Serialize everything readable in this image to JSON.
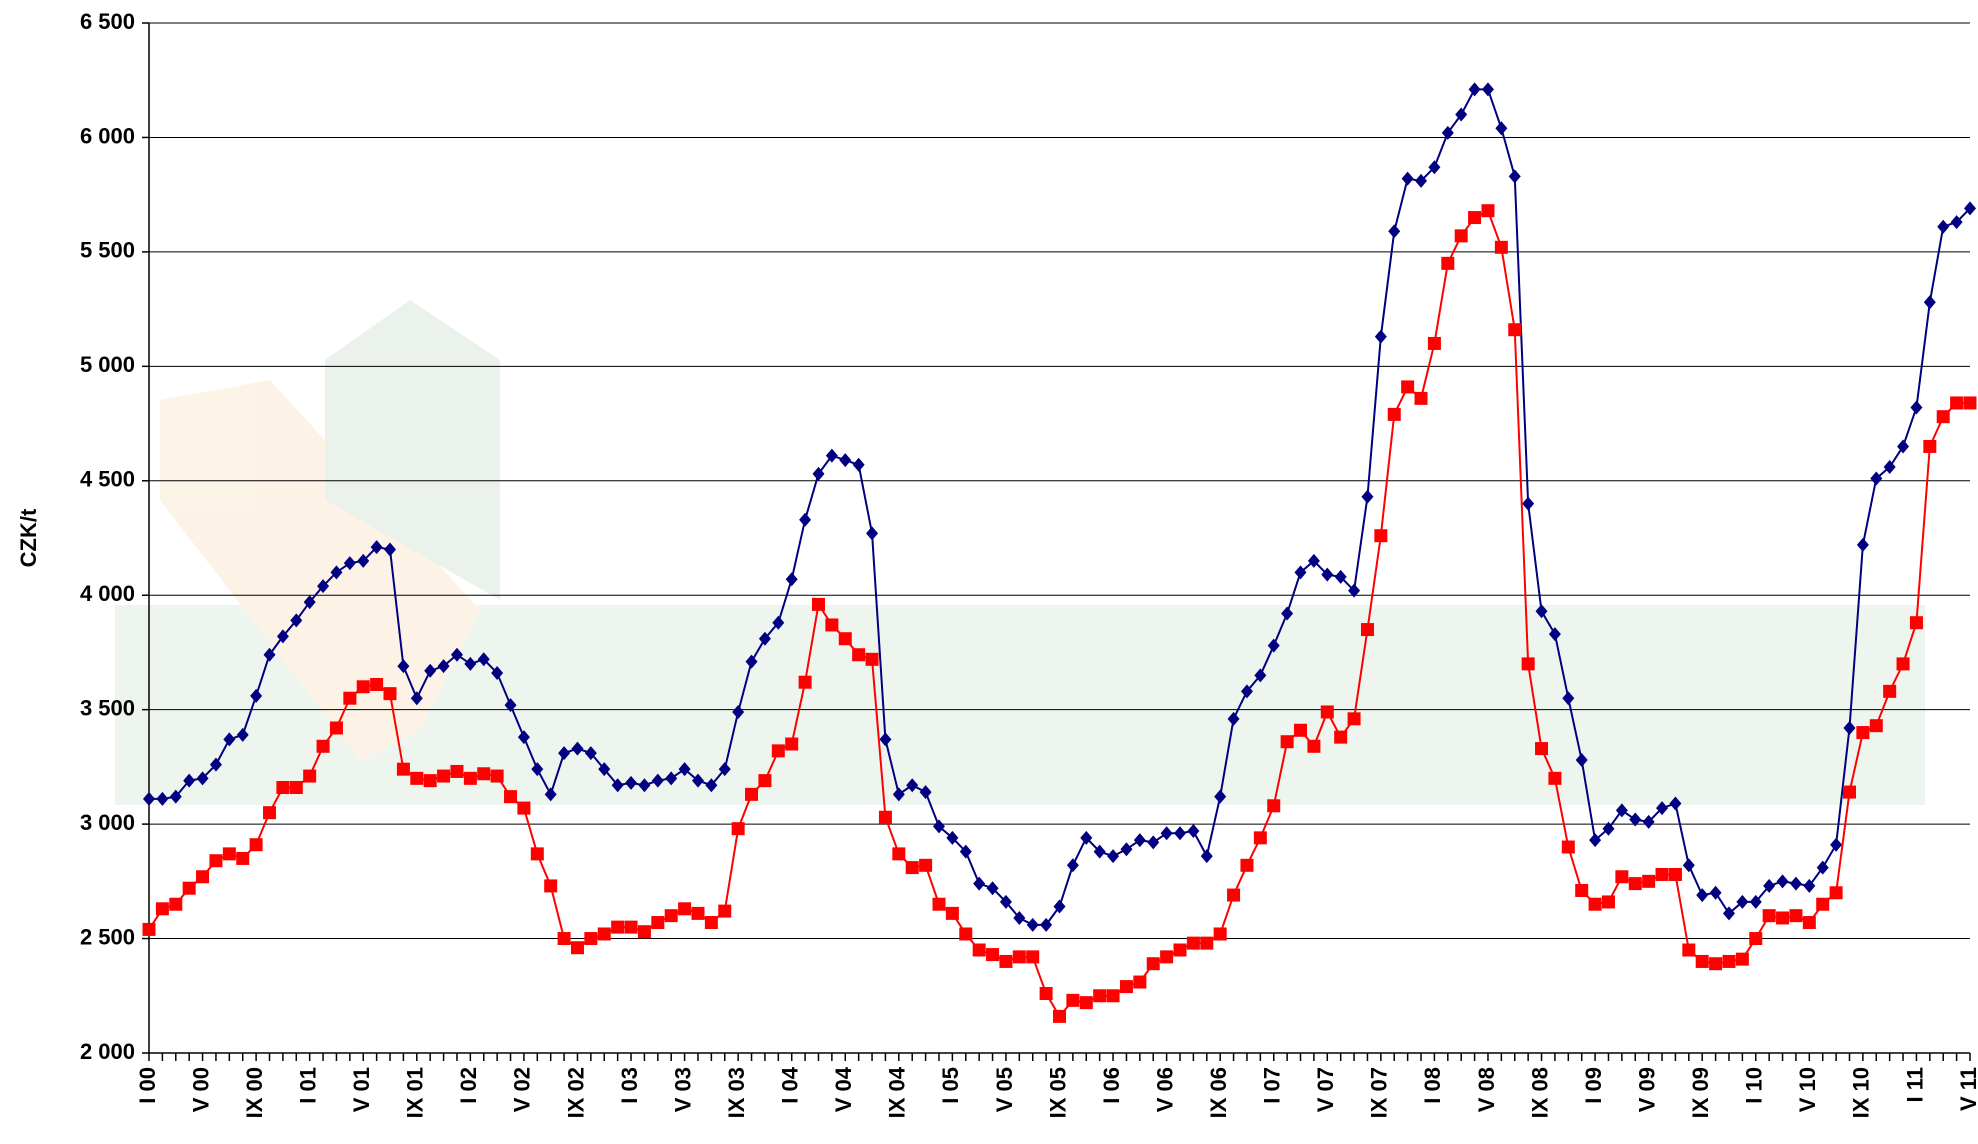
{
  "chart_data": {
    "type": "line",
    "y_label": "CZK/t",
    "categories": [
      "I 00",
      null,
      null,
      null,
      "V 00",
      null,
      null,
      null,
      "IX 00",
      null,
      null,
      null,
      "I 01",
      null,
      null,
      null,
      "V 01",
      null,
      null,
      null,
      "IX 01",
      null,
      null,
      null,
      "I 02",
      null,
      null,
      null,
      "V 02",
      null,
      null,
      null,
      "IX 02",
      null,
      null,
      null,
      "I 03",
      null,
      null,
      null,
      "V 03",
      null,
      null,
      null,
      "IX 03",
      null,
      null,
      null,
      "I 04",
      null,
      null,
      null,
      "V 04",
      null,
      null,
      null,
      "IX 04",
      null,
      null,
      null,
      "I 05",
      null,
      null,
      null,
      "V 05",
      null,
      null,
      null,
      "IX 05",
      null,
      null,
      null,
      "I 06",
      null,
      null,
      null,
      "V 06",
      null,
      null,
      null,
      "IX 06",
      null,
      null,
      null,
      "I 07",
      null,
      null,
      null,
      "V 07",
      null,
      null,
      null,
      "IX 07",
      null,
      null,
      null,
      "I 08",
      null,
      null,
      null,
      "V 08",
      null,
      null,
      null,
      "IX 08",
      null,
      null,
      null,
      "I 09",
      null,
      null,
      null,
      "V 09",
      null,
      null,
      null,
      "IX 09",
      null,
      null,
      null,
      "I 10",
      null,
      null,
      null,
      "V 10",
      null,
      null,
      null,
      "IX 10",
      null,
      null,
      null,
      "I 11",
      null,
      null,
      null,
      "V 11"
    ],
    "series": [
      {
        "color": "#000080",
        "marker": "diamond",
        "values": [
          3110,
          3110,
          3120,
          3190,
          3200,
          3260,
          3370,
          3390,
          3560,
          3740,
          3820,
          3890,
          3970,
          4040,
          4100,
          4140,
          4150,
          4210,
          4200,
          3690,
          3550,
          3670,
          3690,
          3740,
          3700,
          3720,
          3660,
          3520,
          3380,
          3240,
          3130,
          3310,
          3330,
          3310,
          3240,
          3170,
          3180,
          3170,
          3190,
          3200,
          3240,
          3190,
          3170,
          3240,
          3490,
          3710,
          3810,
          3880,
          4070,
          4330,
          4530,
          4610,
          4590,
          4570,
          4270,
          3370,
          3130,
          3170,
          3140,
          2990,
          2940,
          2880,
          2740,
          2720,
          2660,
          2590,
          2560,
          2560,
          2640,
          2820,
          2940,
          2880,
          2860,
          2890,
          2930,
          2920,
          2960,
          2960,
          2970,
          2860,
          3120,
          3460,
          3580,
          3650,
          3780,
          3920,
          4100,
          4150,
          4090,
          4080,
          4020,
          4430,
          5130,
          5590,
          5820,
          5810,
          5870,
          6020,
          6100,
          6210,
          6210,
          6040,
          5830,
          4400,
          3930,
          3830,
          3550,
          3280,
          2930,
          2980,
          3060,
          3020,
          3010,
          3070,
          3090,
          2820,
          2690,
          2700,
          2610,
          2660,
          2660,
          2730,
          2750,
          2740,
          2730,
          2810,
          2910,
          3420,
          4220,
          4510,
          4560,
          4650,
          4820,
          5280,
          5610,
          5630,
          5690
        ]
      },
      {
        "color": "#ff0000",
        "marker": "square",
        "values": [
          2540,
          2630,
          2650,
          2720,
          2770,
          2840,
          2870,
          2850,
          2910,
          3050,
          3160,
          3160,
          3210,
          3340,
          3420,
          3550,
          3600,
          3610,
          3570,
          3240,
          3200,
          3190,
          3210,
          3230,
          3200,
          3220,
          3210,
          3120,
          3070,
          2870,
          2730,
          2500,
          2460,
          2500,
          2520,
          2550,
          2550,
          2530,
          2570,
          2600,
          2630,
          2610,
          2570,
          2620,
          2980,
          3130,
          3190,
          3320,
          3350,
          3620,
          3960,
          3870,
          3810,
          3740,
          3720,
          3030,
          2870,
          2810,
          2820,
          2650,
          2610,
          2520,
          2450,
          2430,
          2400,
          2420,
          2420,
          2260,
          2160,
          2230,
          2220,
          2250,
          2250,
          2290,
          2310,
          2390,
          2420,
          2450,
          2480,
          2480,
          2520,
          2690,
          2820,
          2940,
          3080,
          3360,
          3410,
          3340,
          3490,
          3380,
          3460,
          3850,
          4260,
          4790,
          4910,
          4860,
          5100,
          5450,
          5570,
          5650,
          5680,
          5520,
          5160,
          3700,
          3330,
          3200,
          2900,
          2710,
          2650,
          2660,
          2770,
          2740,
          2750,
          2780,
          2780,
          2450,
          2400,
          2390,
          2400,
          2410,
          2500,
          2600,
          2590,
          2600,
          2570,
          2650,
          2700,
          3140,
          3400,
          3430,
          3580,
          3700,
          3880,
          4650,
          4780,
          4840,
          4840
        ]
      }
    ],
    "ylim": [
      2000,
      6500
    ],
    "yticks": [
      {
        "value": 2000,
        "label": "2 000"
      },
      {
        "value": 2500,
        "label": "2 500"
      },
      {
        "value": 3000,
        "label": "3 000"
      },
      {
        "value": 3500,
        "label": "3 500"
      },
      {
        "value": 4000,
        "label": "4 000"
      },
      {
        "value": 4500,
        "label": "4 500"
      },
      {
        "value": 5000,
        "label": "5 000"
      },
      {
        "value": 5500,
        "label": "5 500"
      },
      {
        "value": 6000,
        "label": "6 000"
      },
      {
        "value": 6500,
        "label": "6 500"
      }
    ],
    "grid": true
  }
}
